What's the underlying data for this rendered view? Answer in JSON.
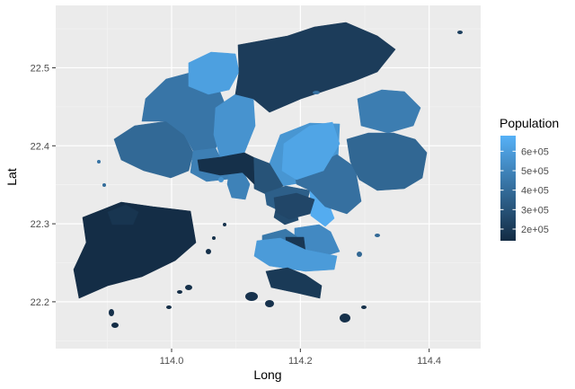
{
  "chart_data": {
    "type": "choropleth map",
    "xlabel": "Long",
    "ylabel": "Lat",
    "x_ticks": [
      114.0,
      114.2,
      114.4
    ],
    "x_tick_labels": [
      "114.0",
      "114.2",
      "114.4"
    ],
    "y_ticks": [
      22.2,
      22.3,
      22.4,
      22.5
    ],
    "y_tick_labels": [
      "22.2",
      "22.3",
      "22.4",
      "22.5"
    ],
    "xlim": [
      113.82,
      114.48
    ],
    "ylim": [
      22.14,
      22.58
    ],
    "grid": true,
    "legend": {
      "title": "Population",
      "position": "right",
      "scale": "continuous",
      "range": [
        140000,
        680000
      ],
      "low_color": "#132B43",
      "high_color": "#56B1F7",
      "breaks": [
        200000,
        300000,
        400000,
        500000,
        600000
      ],
      "labels": [
        "2e+05",
        "3e+05",
        "4e+05",
        "5e+05",
        "6e+05"
      ]
    },
    "regions": [
      {
        "population": 390000
      },
      {
        "population": 440000
      },
      {
        "population": 610000
      },
      {
        "population": 560000
      },
      {
        "population": 480000
      },
      {
        "population": 490000
      },
      {
        "population": 570000
      },
      {
        "population": 300000
      },
      {
        "population": 350000
      },
      {
        "population": 660000
      },
      {
        "population": 270000
      },
      {
        "population": 150000
      },
      {
        "population": 180000
      },
      {
        "population": 420000
      },
      {
        "population": 210000
      },
      {
        "population": 160000
      },
      {
        "population": 630000
      },
      {
        "population": 380000
      },
      {
        "population": 470000
      },
      {
        "population": 250000
      },
      {
        "population": 520000
      },
      {
        "population": 450000
      },
      {
        "population": 190000
      },
      {
        "population": 590000
      },
      {
        "population": 200000
      }
    ]
  }
}
